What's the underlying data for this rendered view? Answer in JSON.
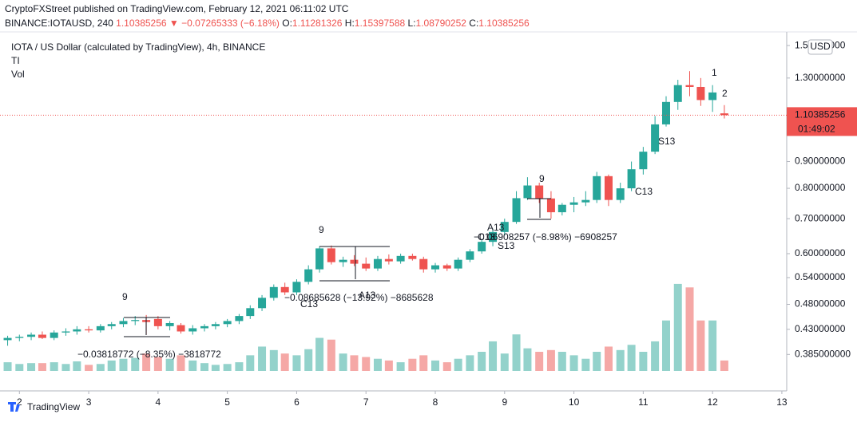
{
  "header": {
    "publisher": "CryptoFXStreet published on TradingView.com, February 12, 2021 06:11:02 UTC",
    "symbol": "BINANCE:IOTAUSD, 240",
    "last": "1.10385256",
    "change": "▼ −0.07265333 (−6.18%)",
    "o_label": "O:",
    "o": "1.11281326",
    "h_label": "H:",
    "h": "1.15397588",
    "l_label": "L:",
    "l": "1.08790252",
    "c_label": "C:",
    "c": "1.10385256"
  },
  "chart_data": {
    "type": "candlestick",
    "title": "IOTA / US Dollar (calculated by TradingView), 4h, BINANCE",
    "indicators": [
      "TI",
      "Vol"
    ],
    "currency": "USD",
    "price_label": "1.10385256",
    "countdown": "01:49:02",
    "price_line": 1.10385256,
    "yscale": "log",
    "ylim": [
      0.358,
      1.565
    ],
    "yticks": [
      {
        "value": 0.385,
        "label": "0.385000000"
      },
      {
        "value": 0.43,
        "label": "0.43000000"
      },
      {
        "value": 0.48,
        "label": "0.48000000"
      },
      {
        "value": 0.54,
        "label": "0.54000000"
      },
      {
        "value": 0.6,
        "label": "0.60000000"
      },
      {
        "value": 0.7,
        "label": "0.70000000"
      },
      {
        "value": 0.8,
        "label": "0.80000000"
      },
      {
        "value": 0.9,
        "label": "0.90000000"
      },
      {
        "value": 1.3,
        "label": "1.30000000"
      },
      {
        "value": 1.5,
        "label": "1.50000000"
      }
    ],
    "xlim": [
      1.72,
      13.07
    ],
    "xticks": [
      2,
      3,
      4,
      5,
      6,
      7,
      8,
      9,
      10,
      11,
      12,
      13
    ],
    "up_color": "#26a69a",
    "down_color": "#ef5350",
    "up_volume_color": "#93d2cb",
    "down_volume_color": "#f5a8a6",
    "volume_lim": [
      0,
      110
    ],
    "x": [
      1.83,
      2.0,
      2.17,
      2.33,
      2.5,
      2.67,
      2.83,
      3.0,
      3.17,
      3.33,
      3.5,
      3.67,
      3.83,
      4.0,
      4.17,
      4.33,
      4.5,
      4.67,
      4.83,
      5.0,
      5.17,
      5.33,
      5.5,
      5.67,
      5.83,
      6.0,
      6.17,
      6.33,
      6.5,
      6.67,
      6.83,
      7.0,
      7.17,
      7.33,
      7.5,
      7.67,
      7.83,
      8.0,
      8.17,
      8.33,
      8.5,
      8.67,
      8.83,
      9.0,
      9.17,
      9.33,
      9.5,
      9.67,
      9.83,
      10.0,
      10.17,
      10.33,
      10.5,
      10.67,
      10.83,
      11.0,
      11.17,
      11.33,
      11.5,
      11.67,
      11.83,
      12.0,
      12.17
    ],
    "open": [
      0.41,
      0.414,
      0.416,
      0.42,
      0.414,
      0.424,
      0.426,
      0.43,
      0.428,
      0.436,
      0.44,
      0.446,
      0.448,
      0.45,
      0.436,
      0.438,
      0.426,
      0.432,
      0.436,
      0.44,
      0.446,
      0.456,
      0.472,
      0.494,
      0.518,
      0.506,
      0.53,
      0.56,
      0.614,
      0.578,
      0.584,
      0.574,
      0.562,
      0.586,
      0.58,
      0.594,
      0.586,
      0.56,
      0.57,
      0.562,
      0.584,
      0.606,
      0.632,
      0.66,
      0.69,
      0.766,
      0.81,
      0.765,
      0.72,
      0.744,
      0.752,
      0.76,
      0.844,
      0.76,
      0.8,
      0.87,
      0.94,
      1.06,
      1.17,
      1.26,
      1.25,
      1.18,
      1.11281326
    ],
    "high": [
      0.418,
      0.42,
      0.424,
      0.426,
      0.428,
      0.432,
      0.436,
      0.436,
      0.44,
      0.444,
      0.452,
      0.456,
      0.458,
      0.456,
      0.446,
      0.442,
      0.438,
      0.44,
      0.444,
      0.45,
      0.46,
      0.478,
      0.5,
      0.524,
      0.528,
      0.536,
      0.57,
      0.62,
      0.622,
      0.592,
      0.596,
      0.59,
      0.594,
      0.598,
      0.6,
      0.6,
      0.592,
      0.576,
      0.574,
      0.59,
      0.612,
      0.64,
      0.67,
      0.7,
      0.79,
      0.84,
      0.82,
      0.79,
      0.75,
      0.77,
      0.79,
      0.86,
      0.85,
      0.82,
      0.9,
      0.96,
      1.1,
      1.2,
      1.29,
      1.34,
      1.3,
      1.26,
      1.15397588
    ],
    "low": [
      0.4,
      0.408,
      0.41,
      0.412,
      0.41,
      0.418,
      0.42,
      0.424,
      0.424,
      0.43,
      0.434,
      0.438,
      0.42,
      0.43,
      0.428,
      0.422,
      0.42,
      0.426,
      0.43,
      0.434,
      0.44,
      0.45,
      0.466,
      0.488,
      0.5,
      0.5,
      0.524,
      0.552,
      0.572,
      0.566,
      0.568,
      0.556,
      0.556,
      0.572,
      0.574,
      0.582,
      0.552,
      0.552,
      0.556,
      0.556,
      0.578,
      0.6,
      0.62,
      0.65,
      0.684,
      0.76,
      0.75,
      0.7,
      0.71,
      0.72,
      0.74,
      0.75,
      0.74,
      0.75,
      0.79,
      0.85,
      0.93,
      1.05,
      1.13,
      1.2,
      1.15,
      1.12,
      1.08790252
    ],
    "close": [
      0.414,
      0.416,
      0.42,
      0.414,
      0.424,
      0.426,
      0.43,
      0.428,
      0.436,
      0.44,
      0.446,
      0.448,
      0.444,
      0.436,
      0.442,
      0.426,
      0.432,
      0.436,
      0.44,
      0.446,
      0.456,
      0.472,
      0.494,
      0.518,
      0.506,
      0.53,
      0.56,
      0.614,
      0.578,
      0.584,
      0.574,
      0.562,
      0.586,
      0.58,
      0.594,
      0.586,
      0.56,
      0.57,
      0.562,
      0.584,
      0.606,
      0.632,
      0.66,
      0.69,
      0.766,
      0.81,
      0.765,
      0.72,
      0.744,
      0.752,
      0.76,
      0.844,
      0.76,
      0.8,
      0.87,
      0.94,
      1.06,
      1.17,
      1.26,
      1.25,
      1.18,
      1.22,
      1.10385256
    ],
    "volume": [
      10,
      8,
      9,
      9,
      10,
      8,
      11,
      7,
      8,
      12,
      14,
      15,
      20,
      16,
      14,
      18,
      12,
      9,
      7,
      8,
      10,
      18,
      28,
      24,
      20,
      18,
      25,
      38,
      36,
      20,
      18,
      16,
      14,
      12,
      10,
      14,
      18,
      12,
      10,
      14,
      18,
      22,
      34,
      20,
      42,
      26,
      22,
      24,
      22,
      18,
      14,
      22,
      28,
      24,
      30,
      22,
      34,
      58,
      100,
      96,
      58,
      58,
      12
    ],
    "annotations": [
      "9",
      "9",
      "9",
      "−0.03818772 (−8.35%) −3818772",
      "−0.08685628 (−13.92%) −8685628",
      "−0.06908257 (−8.98%) −6908257",
      "C13",
      "A13",
      "C13",
      "A13",
      "S13",
      "C13",
      "S13",
      "1",
      "2"
    ]
  },
  "footer": {
    "brand": "TradingView"
  }
}
